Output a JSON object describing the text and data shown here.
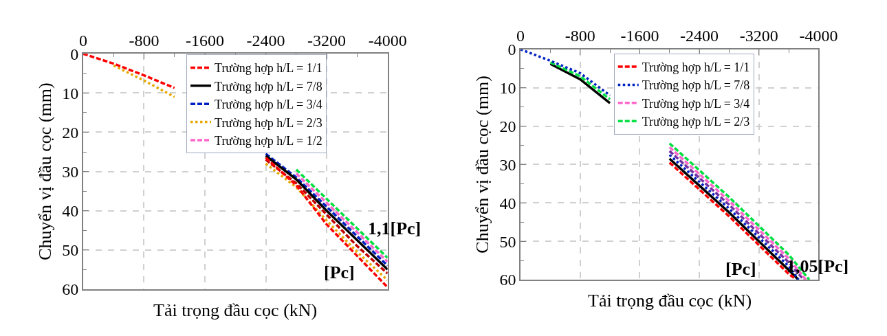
{
  "chart_data": [
    {
      "type": "line",
      "xlabel": "Tải trọng đầu cọc (kN)",
      "ylabel": "Chuyển vị đầu cọc (mm)",
      "xlim": [
        0,
        -4000
      ],
      "xticks": [
        0,
        -800,
        -1600,
        -2400,
        -3200,
        -4000
      ],
      "ylim": [
        60,
        0
      ],
      "yticks": [
        0,
        10,
        20,
        30,
        40,
        50,
        60
      ],
      "grid": true,
      "legend": "top right",
      "marker": "none",
      "x": [
        0,
        -400,
        -800,
        -1200,
        -1600,
        -2000,
        -2400,
        -2800,
        -3200,
        -3600,
        -4000
      ],
      "annotations": [
        "1,1[Pc]",
        "[Pc]"
      ],
      "series": [
        {
          "name": "Trường hợp h/L = 1/1",
          "color": "#ff0000",
          "line_style": "dashed",
          "values": [
            0,
            2.5,
            5.5,
            8.7,
            null,
            null,
            26.5,
            33.5,
            43.5,
            51.5,
            59.5
          ]
        },
        {
          "name": "Trường hợp h/L = 7/8",
          "color": "#000000",
          "line_style": "solid",
          "values": [
            null,
            null,
            null,
            null,
            null,
            null,
            26,
            32,
            40,
            47.5,
            55
          ]
        },
        {
          "name": "Trường hợp h/L = 3/4",
          "color": "#0020c0",
          "line_style": "dashed",
          "values": [
            null,
            null,
            null,
            null,
            null,
            null,
            25.5,
            31.5,
            39,
            46.5,
            54
          ]
        },
        {
          "name": "Trường hợp h/L = 2/3",
          "color": "#e6a800",
          "line_style": "dotted",
          "values": [
            null,
            3,
            6.8,
            11,
            null,
            null,
            28,
            34,
            42.5,
            50.5,
            57.7
          ]
        },
        {
          "name": "Trường hợp h/L = 1/2",
          "color": "#ff66cc",
          "line_style": "dashed",
          "values": [
            null,
            null,
            null,
            null,
            null,
            null,
            null,
            30.5,
            38,
            45.5,
            53
          ]
        },
        {
          "color": "#c00000",
          "line_style": "dashed",
          "values": [
            null,
            null,
            null,
            null,
            null,
            null,
            27,
            33,
            41,
            49,
            56
          ]
        },
        {
          "color": "#00e040",
          "line_style": "dashed",
          "values": [
            null,
            null,
            null,
            null,
            null,
            null,
            null,
            29.5,
            37,
            44.5,
            52
          ]
        }
      ]
    },
    {
      "type": "line",
      "xlabel": "Tải trọng đầu cọc (kN)",
      "ylabel": "Chuyển vị đầu cọc (mm)",
      "xlim": [
        0,
        -4000
      ],
      "xticks": [
        0,
        -800,
        -1600,
        -2400,
        -3200,
        -4000
      ],
      "ylim": [
        60,
        0
      ],
      "yticks": [
        0,
        10,
        20,
        30,
        40,
        50,
        60
      ],
      "grid": true,
      "legend": "top right",
      "marker": "none",
      "annotations": [
        "[Pc]",
        "1,05[Pc]"
      ],
      "series": [
        {
          "name": "Trường hợp h/L = 1/1",
          "color": "#ff0000",
          "line_style": "dashed",
          "x": [
            -2000,
            -2400,
            -2800,
            -3200,
            -3600,
            -3670
          ],
          "values": [
            29.5,
            36.5,
            43.5,
            51,
            58.5,
            59.5
          ]
        },
        {
          "name": "Trường hợp h/L = 7/8",
          "color": "#0020c0",
          "line_style": "dotted",
          "x": [
            0,
            -400,
            -800,
            -1200,
            -1600,
            -2000,
            -2400,
            -2800,
            -3200,
            -3600,
            -3730
          ],
          "values": [
            0,
            3,
            6.2,
            12,
            null,
            27.5,
            34.5,
            41.5,
            49,
            56.5,
            60
          ]
        },
        {
          "name": "Trường hợp h/L = 3/4",
          "color": "#ff66cc",
          "line_style": "dashed",
          "x": [
            -2000,
            -2400,
            -2800,
            -3200,
            -3600,
            -3830
          ],
          "values": [
            25.5,
            32.5,
            39.5,
            47,
            54.5,
            60
          ]
        },
        {
          "name": "Trường hợp h/L = 2/3",
          "color": "#00e040",
          "line_style": "dashed",
          "x": [
            -400,
            -800,
            -1200,
            -1600,
            -2000,
            -2400,
            -2800,
            -3200,
            -3600,
            -3875
          ],
          "values": [
            3.4,
            7,
            13,
            null,
            24.5,
            31.5,
            38.5,
            46,
            53.5,
            60
          ]
        },
        {
          "color": "#000000",
          "line_style": "solid",
          "x": [
            -400,
            -800,
            -1200,
            -1600,
            -2000,
            -2400,
            -2800,
            -3200,
            -3600,
            -3730
          ],
          "values": [
            3.8,
            7.8,
            14,
            null,
            28.5,
            35.5,
            42.5,
            50,
            57.5,
            60
          ]
        },
        {
          "color": "#7030a0",
          "line_style": "dashed",
          "x": [
            -2000,
            -2400,
            -2800,
            -3200,
            -3600,
            -3800
          ],
          "values": [
            26.5,
            33.5,
            40.5,
            48,
            55.5,
            60
          ]
        }
      ]
    }
  ]
}
